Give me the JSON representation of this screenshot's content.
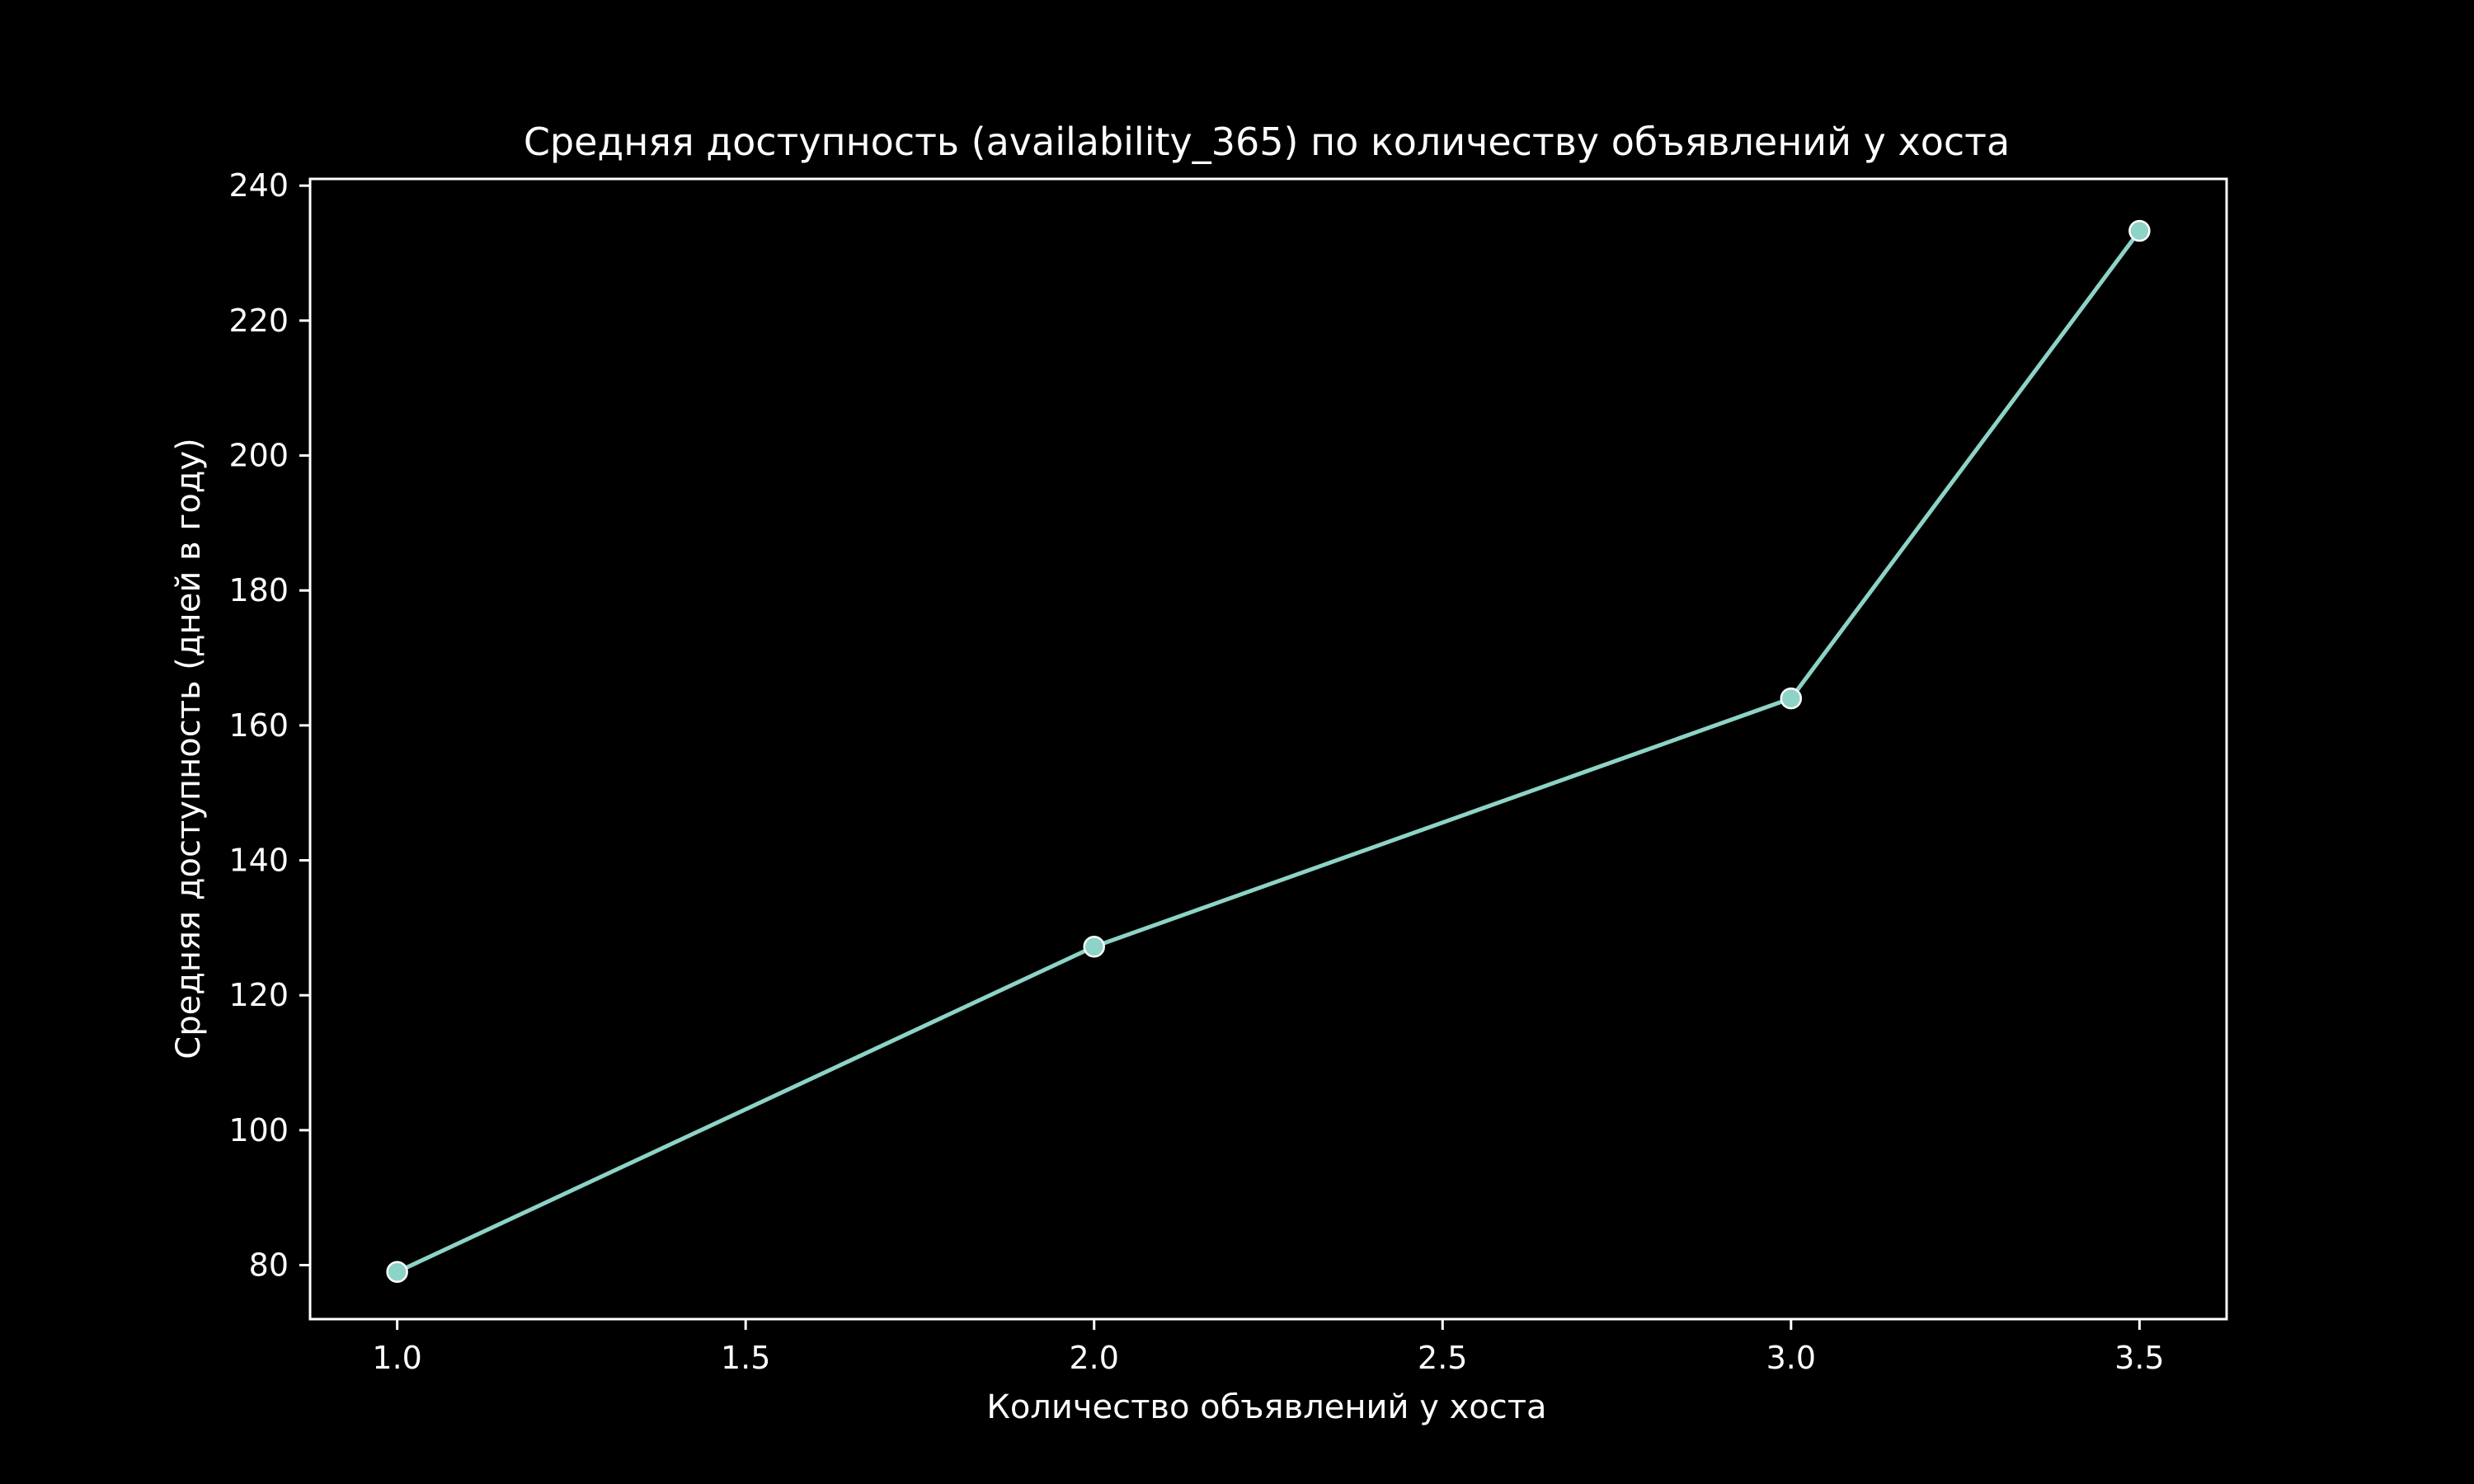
{
  "chart_data": {
    "type": "line",
    "title": "Средняя доступность (availability_365) по количеству объявлений у хоста",
    "xlabel": "Количество объявлений у хоста",
    "ylabel": "Средняя доступность (дней в году)",
    "x": [
      1.0,
      2.0,
      3.0,
      3.5
    ],
    "y": [
      79,
      127.2,
      164,
      233.3
    ],
    "xlim": [
      0.875,
      3.625
    ],
    "ylim": [
      72,
      241
    ],
    "xticks": [
      1.0,
      1.5,
      2.0,
      2.5,
      3.0,
      3.5
    ],
    "xtick_labels": [
      "1.0",
      "1.5",
      "2.0",
      "2.5",
      "3.0",
      "3.5"
    ],
    "yticks": [
      80,
      100,
      120,
      140,
      160,
      180,
      200,
      220,
      240
    ],
    "ytick_labels": [
      "80",
      "100",
      "120",
      "140",
      "160",
      "180",
      "200",
      "220",
      "240"
    ],
    "grid": false,
    "line_color": "#8dd3c7",
    "marker_edge_color": "#ffffff",
    "axis_color": "#ffffff",
    "background": "#000000"
  }
}
